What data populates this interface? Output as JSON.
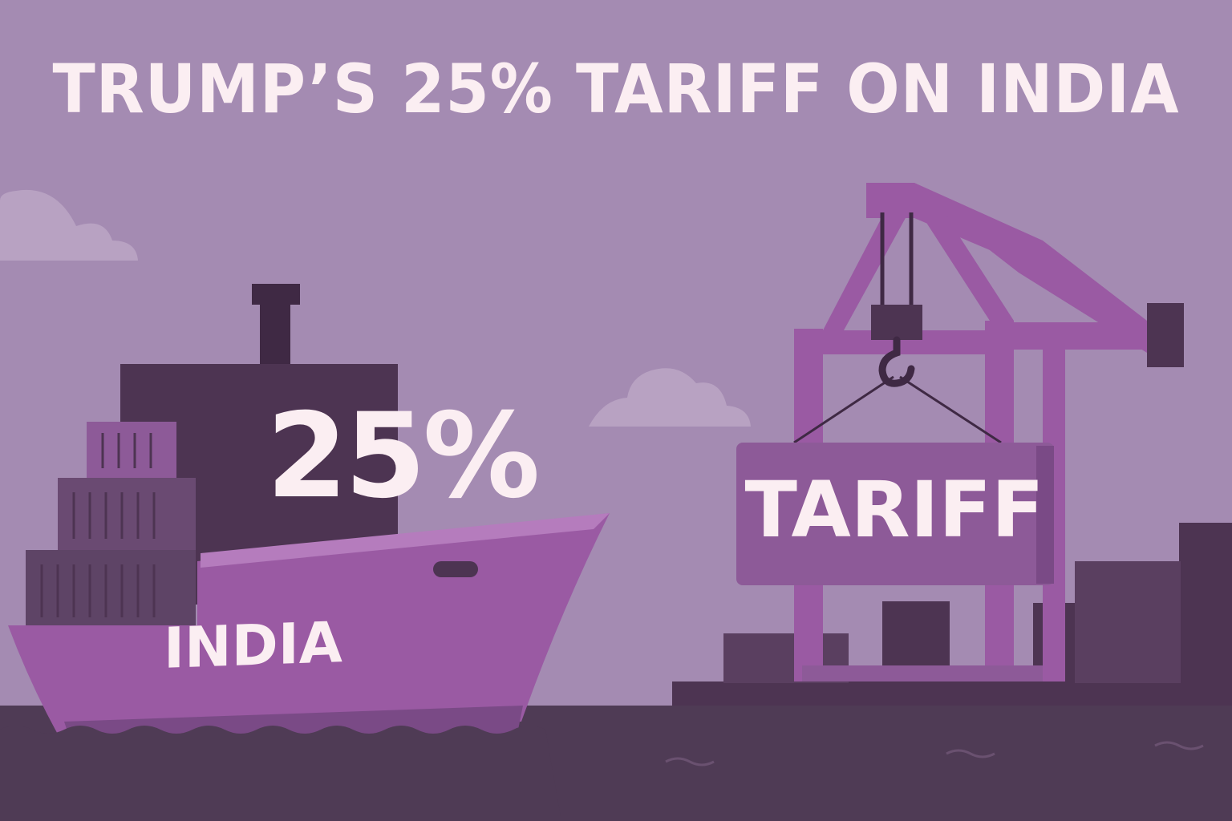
{
  "headline": "TRUMP’S 25% TARIFF ON INDIA",
  "ship": {
    "percent_label": "25%",
    "name_label": "INDIA"
  },
  "crane_sign": {
    "label": "TARIFF"
  },
  "colors": {
    "sky": "#a48bb2",
    "text": "#fbeef2",
    "ship_hull": "#9a5aa3",
    "dark": "#4d3452",
    "crane": "#9a5aa3",
    "sea": "#4f3b55"
  }
}
